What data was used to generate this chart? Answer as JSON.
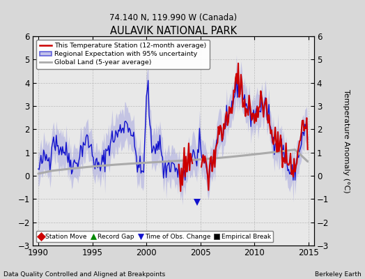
{
  "title": "AULAVIK NATIONAL PARK",
  "subtitle": "74.140 N, 119.990 W (Canada)",
  "xlabel_bottom": "Data Quality Controlled and Aligned at Breakpoints",
  "xlabel_right": "Berkeley Earth",
  "ylabel": "Temperature Anomaly (°C)",
  "xlim": [
    1989.5,
    2015.5
  ],
  "ylim": [
    -3,
    6
  ],
  "yticks": [
    -3,
    -2,
    -1,
    0,
    1,
    2,
    3,
    4,
    5,
    6
  ],
  "xticks": [
    1990,
    1995,
    2000,
    2005,
    2010,
    2015
  ],
  "bg_color": "#d8d8d8",
  "plot_bg_color": "#e8e8e8",
  "red_line_color": "#cc0000",
  "blue_line_color": "#1111cc",
  "blue_fill_color": "#9999dd",
  "gray_line_color": "#aaaaaa",
  "legend1_entries": [
    {
      "label": "This Temperature Station (12-month average)",
      "color": "#cc0000",
      "lw": 1.8
    },
    {
      "label": "Regional Expectation with 95% uncertainty",
      "color": "#1111cc",
      "lw": 1.5
    },
    {
      "label": "Global Land (5-year average)",
      "color": "#aaaaaa",
      "lw": 2.0
    }
  ],
  "legend2_entries": [
    {
      "label": "Station Move",
      "marker": "D",
      "color": "#cc0000"
    },
    {
      "label": "Record Gap",
      "marker": "^",
      "color": "#008800"
    },
    {
      "label": "Time of Obs. Change",
      "marker": "v",
      "color": "#1111cc"
    },
    {
      "label": "Empirical Break",
      "marker": "s",
      "color": "#000000"
    }
  ],
  "obs_change_year": 2004.7,
  "obs_change_value": -1.15
}
